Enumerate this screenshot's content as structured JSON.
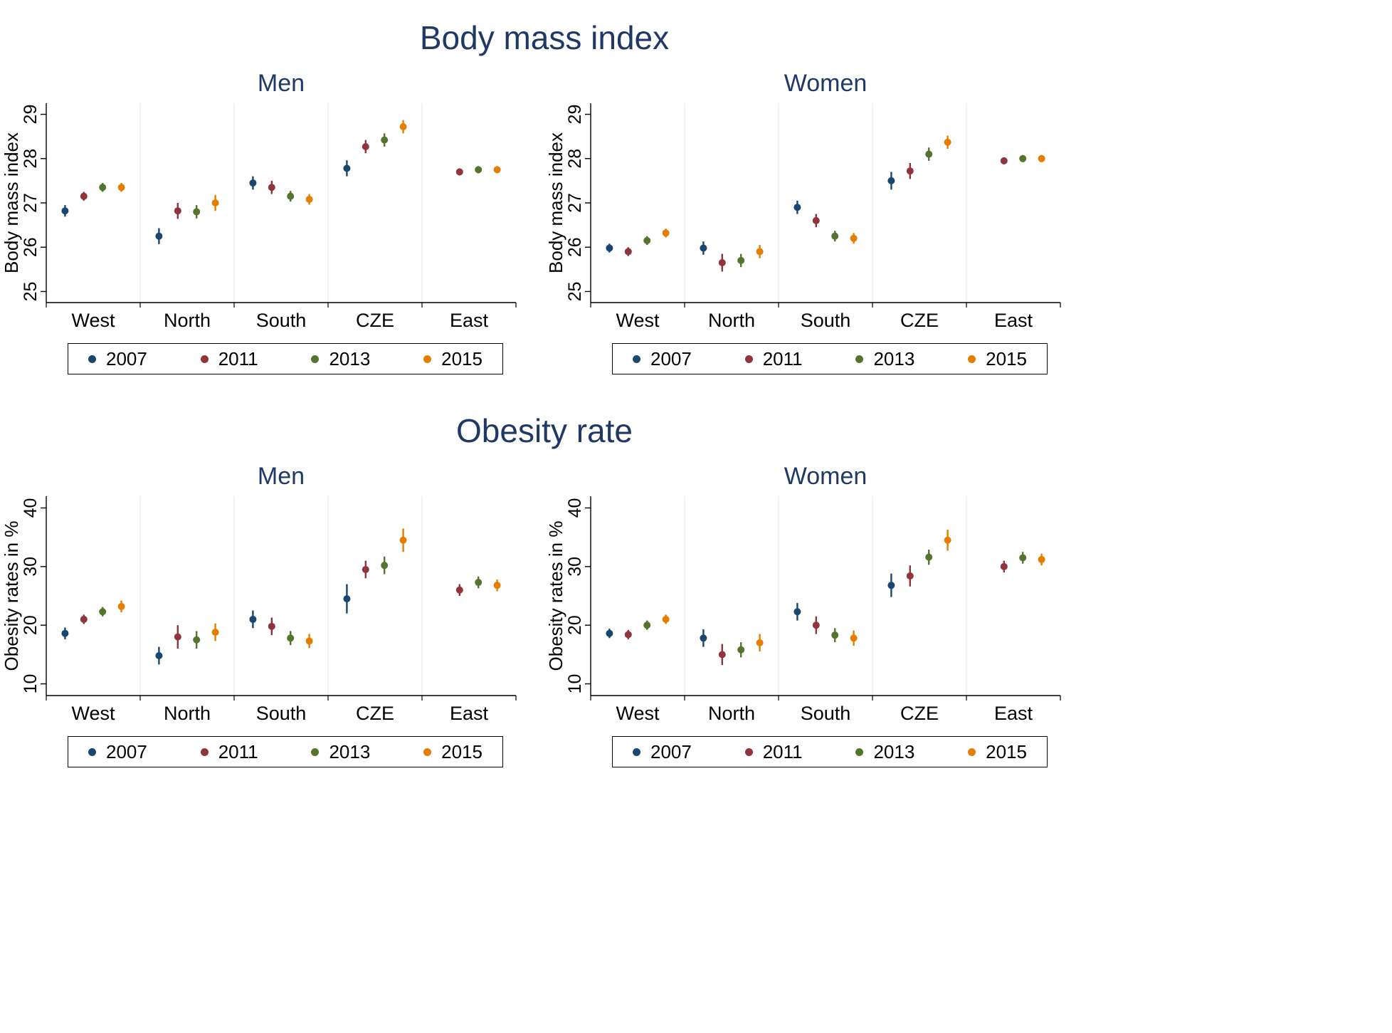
{
  "figure": {
    "sections": [
      {
        "title": "Body mass index"
      },
      {
        "title": "Obesity rate"
      }
    ]
  },
  "style": {
    "title_color": "#1f3864",
    "axis_color": "#000000",
    "grid_color": "#e6e6e6",
    "series_colors": {
      "2007": "#1a476f",
      "2011": "#90353b",
      "2013": "#55752f",
      "2015": "#e37e00"
    }
  },
  "chart_data": [
    {
      "type": "scatter",
      "name": "bmi-men",
      "title": "Men",
      "section": "Body mass index",
      "ylabel": "Body mass index",
      "categories": [
        "West",
        "North",
        "South",
        "CZE",
        "East"
      ],
      "yticks": [
        25,
        26,
        27,
        28,
        29
      ],
      "ylim": [
        24.75,
        29.25
      ],
      "legend_position": "below",
      "grid": "vertical-separators",
      "series": [
        {
          "name": "2007",
          "values": [
            26.82,
            26.25,
            27.45,
            27.78,
            null
          ],
          "errors": [
            0.13,
            0.18,
            0.15,
            0.18,
            0
          ]
        },
        {
          "name": "2011",
          "values": [
            27.15,
            26.82,
            27.35,
            28.27,
            27.7
          ],
          "errors": [
            0.1,
            0.18,
            0.15,
            0.15,
            0.08
          ]
        },
        {
          "name": "2013",
          "values": [
            27.35,
            26.8,
            27.15,
            28.42,
            27.75
          ],
          "errors": [
            0.1,
            0.15,
            0.12,
            0.15,
            0.08
          ]
        },
        {
          "name": "2015",
          "values": [
            27.35,
            27.0,
            27.08,
            28.72,
            27.75
          ],
          "errors": [
            0.1,
            0.18,
            0.12,
            0.15,
            0.08
          ]
        }
      ]
    },
    {
      "type": "scatter",
      "name": "bmi-women",
      "title": "Women",
      "section": "Body mass index",
      "ylabel": "Body mass index",
      "categories": [
        "West",
        "North",
        "South",
        "CZE",
        "East"
      ],
      "yticks": [
        25,
        26,
        27,
        28,
        29
      ],
      "ylim": [
        24.75,
        29.25
      ],
      "legend_position": "below",
      "grid": "vertical-separators",
      "series": [
        {
          "name": "2007",
          "values": [
            25.98,
            25.98,
            26.9,
            27.5,
            null
          ],
          "errors": [
            0.1,
            0.15,
            0.15,
            0.2,
            0
          ]
        },
        {
          "name": "2011",
          "values": [
            25.9,
            25.65,
            26.6,
            27.72,
            27.95
          ],
          "errors": [
            0.1,
            0.2,
            0.15,
            0.18,
            0.08
          ]
        },
        {
          "name": "2013",
          "values": [
            26.15,
            25.7,
            26.25,
            28.1,
            28.0
          ],
          "errors": [
            0.1,
            0.15,
            0.12,
            0.15,
            0.08
          ]
        },
        {
          "name": "2015",
          "values": [
            26.32,
            25.9,
            26.2,
            28.37,
            28.0
          ],
          "errors": [
            0.1,
            0.15,
            0.12,
            0.15,
            0.08
          ]
        }
      ]
    },
    {
      "type": "scatter",
      "name": "obesity-men",
      "title": "Men",
      "section": "Obesity rate",
      "ylabel": "Obesity rates in %",
      "categories": [
        "West",
        "North",
        "South",
        "CZE",
        "East"
      ],
      "yticks": [
        10,
        20,
        30,
        40
      ],
      "ylim": [
        8,
        42
      ],
      "legend_position": "below",
      "grid": "vertical-separators",
      "series": [
        {
          "name": "2007",
          "values": [
            18.6,
            14.8,
            21.0,
            24.5,
            null
          ],
          "errors": [
            1.0,
            1.5,
            1.5,
            2.5,
            0
          ]
        },
        {
          "name": "2011",
          "values": [
            21.0,
            18.0,
            19.8,
            29.5,
            26.0
          ],
          "errors": [
            0.8,
            2.0,
            1.5,
            1.5,
            1.0
          ]
        },
        {
          "name": "2013",
          "values": [
            22.3,
            17.5,
            17.8,
            30.2,
            27.3
          ],
          "errors": [
            0.8,
            1.5,
            1.2,
            1.5,
            1.0
          ]
        },
        {
          "name": "2015",
          "values": [
            23.2,
            18.8,
            17.3,
            34.5,
            26.8
          ],
          "errors": [
            1.0,
            1.5,
            1.2,
            2.0,
            1.0
          ]
        }
      ]
    },
    {
      "type": "scatter",
      "name": "obesity-women",
      "title": "Women",
      "section": "Obesity rate",
      "ylabel": "Obesity rates in %",
      "categories": [
        "West",
        "North",
        "South",
        "CZE",
        "East"
      ],
      "yticks": [
        10,
        20,
        30,
        40
      ],
      "ylim": [
        8,
        42
      ],
      "legend_position": "below",
      "grid": "vertical-separators",
      "series": [
        {
          "name": "2007",
          "values": [
            18.6,
            17.8,
            22.3,
            26.8,
            null
          ],
          "errors": [
            0.8,
            1.5,
            1.5,
            2.0,
            0
          ]
        },
        {
          "name": "2011",
          "values": [
            18.4,
            15.0,
            20.0,
            28.4,
            30.0
          ],
          "errors": [
            0.8,
            1.8,
            1.5,
            1.8,
            1.0
          ]
        },
        {
          "name": "2013",
          "values": [
            20.0,
            15.8,
            18.3,
            31.6,
            31.5
          ],
          "errors": [
            0.8,
            1.3,
            1.2,
            1.3,
            1.0
          ]
        },
        {
          "name": "2015",
          "values": [
            21.0,
            17.0,
            17.8,
            34.5,
            31.2
          ],
          "errors": [
            0.8,
            1.5,
            1.3,
            1.8,
            1.0
          ]
        }
      ]
    }
  ]
}
